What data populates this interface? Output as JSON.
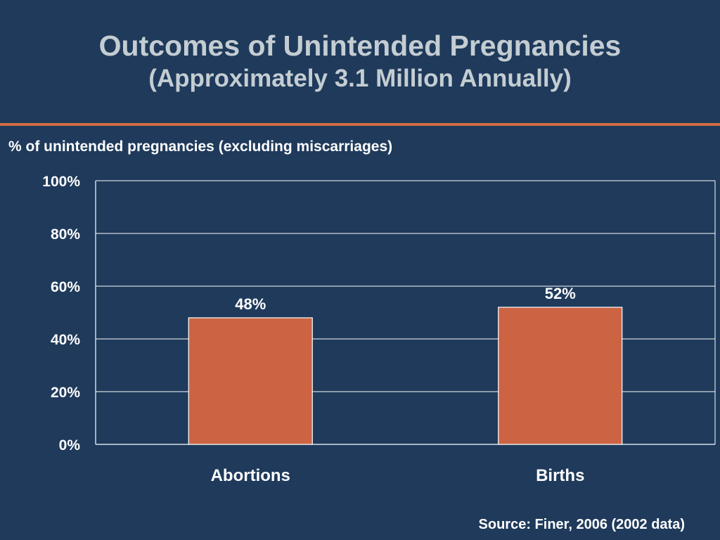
{
  "slide": {
    "title": "Outcomes of Unintended Pregnancies",
    "title_line2": "(Approximately 3.1 Million Annually)",
    "subtitle": "% of unintended pregnancies (excluding miscarriages)",
    "source": "Source: Finer, 2006 (2002 data)"
  },
  "colors": {
    "background": "#1f3a5b",
    "title": "#c4cdd2",
    "accent_rule": "#d36a43",
    "bar_fill": "#cc6444",
    "bar_stroke": "#ffffff",
    "grid": "#ffffff"
  },
  "chart_data": {
    "type": "bar",
    "categories": [
      "Abortions",
      "Births"
    ],
    "values": [
      48,
      52
    ],
    "data_labels": [
      "48%",
      "52%"
    ],
    "ylim": [
      0,
      100
    ],
    "yticks": [
      0,
      20,
      40,
      60,
      80,
      100
    ],
    "ytick_labels": [
      "0%",
      "20%",
      "40%",
      "60%",
      "80%",
      "100%"
    ],
    "grid": true,
    "legend": "none"
  }
}
